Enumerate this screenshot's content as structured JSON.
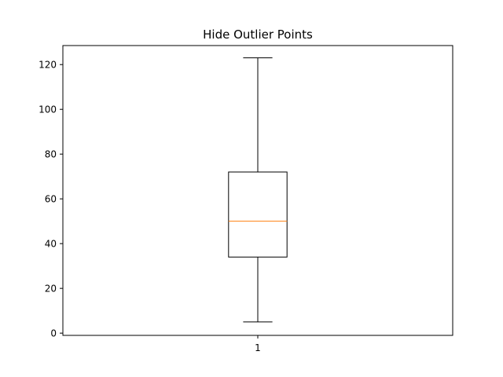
{
  "chart_data": {
    "type": "box",
    "title": "Hide Outlier Points",
    "xlabel": "",
    "ylabel": "",
    "ylim": [
      -1,
      128.5
    ],
    "yticks": [
      0,
      20,
      40,
      60,
      80,
      100,
      120
    ],
    "categories": [
      "1"
    ],
    "boxes": [
      {
        "category": "1",
        "whisker_low": 5,
        "q1": 34,
        "median": 50,
        "q3": 72,
        "whisker_high": 123
      }
    ],
    "show_outliers": false,
    "grid": false,
    "legend": "none"
  },
  "colors": {
    "box": "#000000",
    "median": "#ff7f0e",
    "background": "#ffffff"
  }
}
